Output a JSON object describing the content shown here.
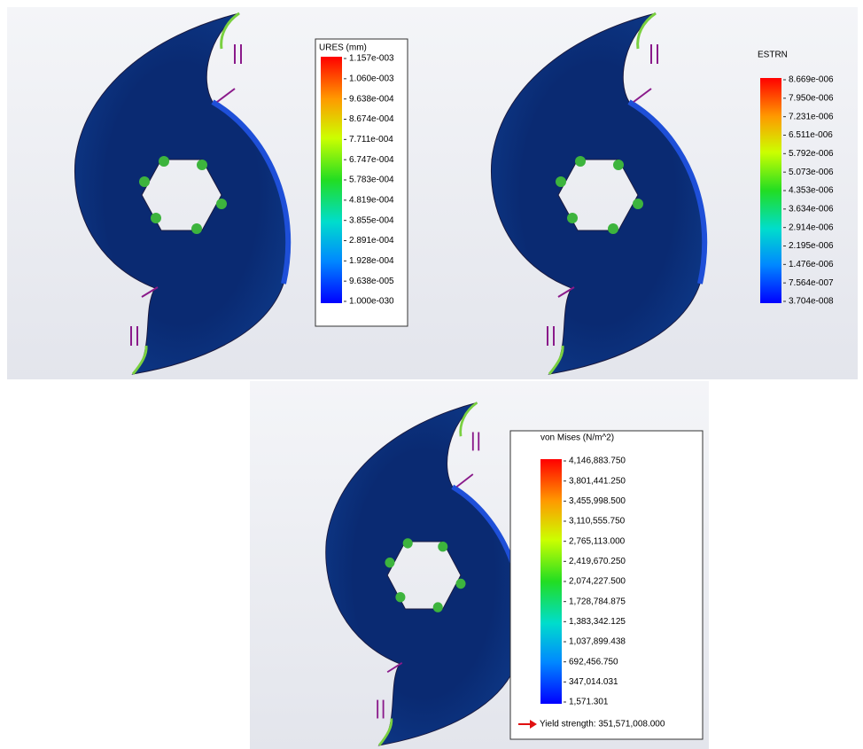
{
  "panels": [
    {
      "legend_title": "URES (mm)",
      "labels": [
        "1.157e-003",
        "1.060e-003",
        "9.638e-004",
        "8.674e-004",
        "7.711e-004",
        "6.747e-004",
        "5.783e-004",
        "4.819e-004",
        "3.855e-004",
        "2.891e-004",
        "1.928e-004",
        "9.638e-005",
        "1.000e-030"
      ]
    },
    {
      "legend_title": "ESTRN",
      "labels": [
        "8.669e-006",
        "7.950e-006",
        "7.231e-006",
        "6.511e-006",
        "5.792e-006",
        "5.073e-006",
        "4.353e-006",
        "3.634e-006",
        "2.914e-006",
        "2.195e-006",
        "1.476e-006",
        "7.564e-007",
        "3.704e-008"
      ]
    },
    {
      "legend_title": "von Mises (N/m^2)",
      "labels": [
        "4,146,883.750",
        "3,801,441.250",
        "3,455,998.500",
        "3,110,555.750",
        "2,765,113.000",
        "2,419,670.250",
        "2,074,227.500",
        "1,728,784.875",
        "1,383,342.125",
        "1,037,899.438",
        "692,456.750",
        "347,014.031",
        "1,571.301"
      ],
      "yield_label": "Yield strength: 351,571,008.000"
    }
  ]
}
